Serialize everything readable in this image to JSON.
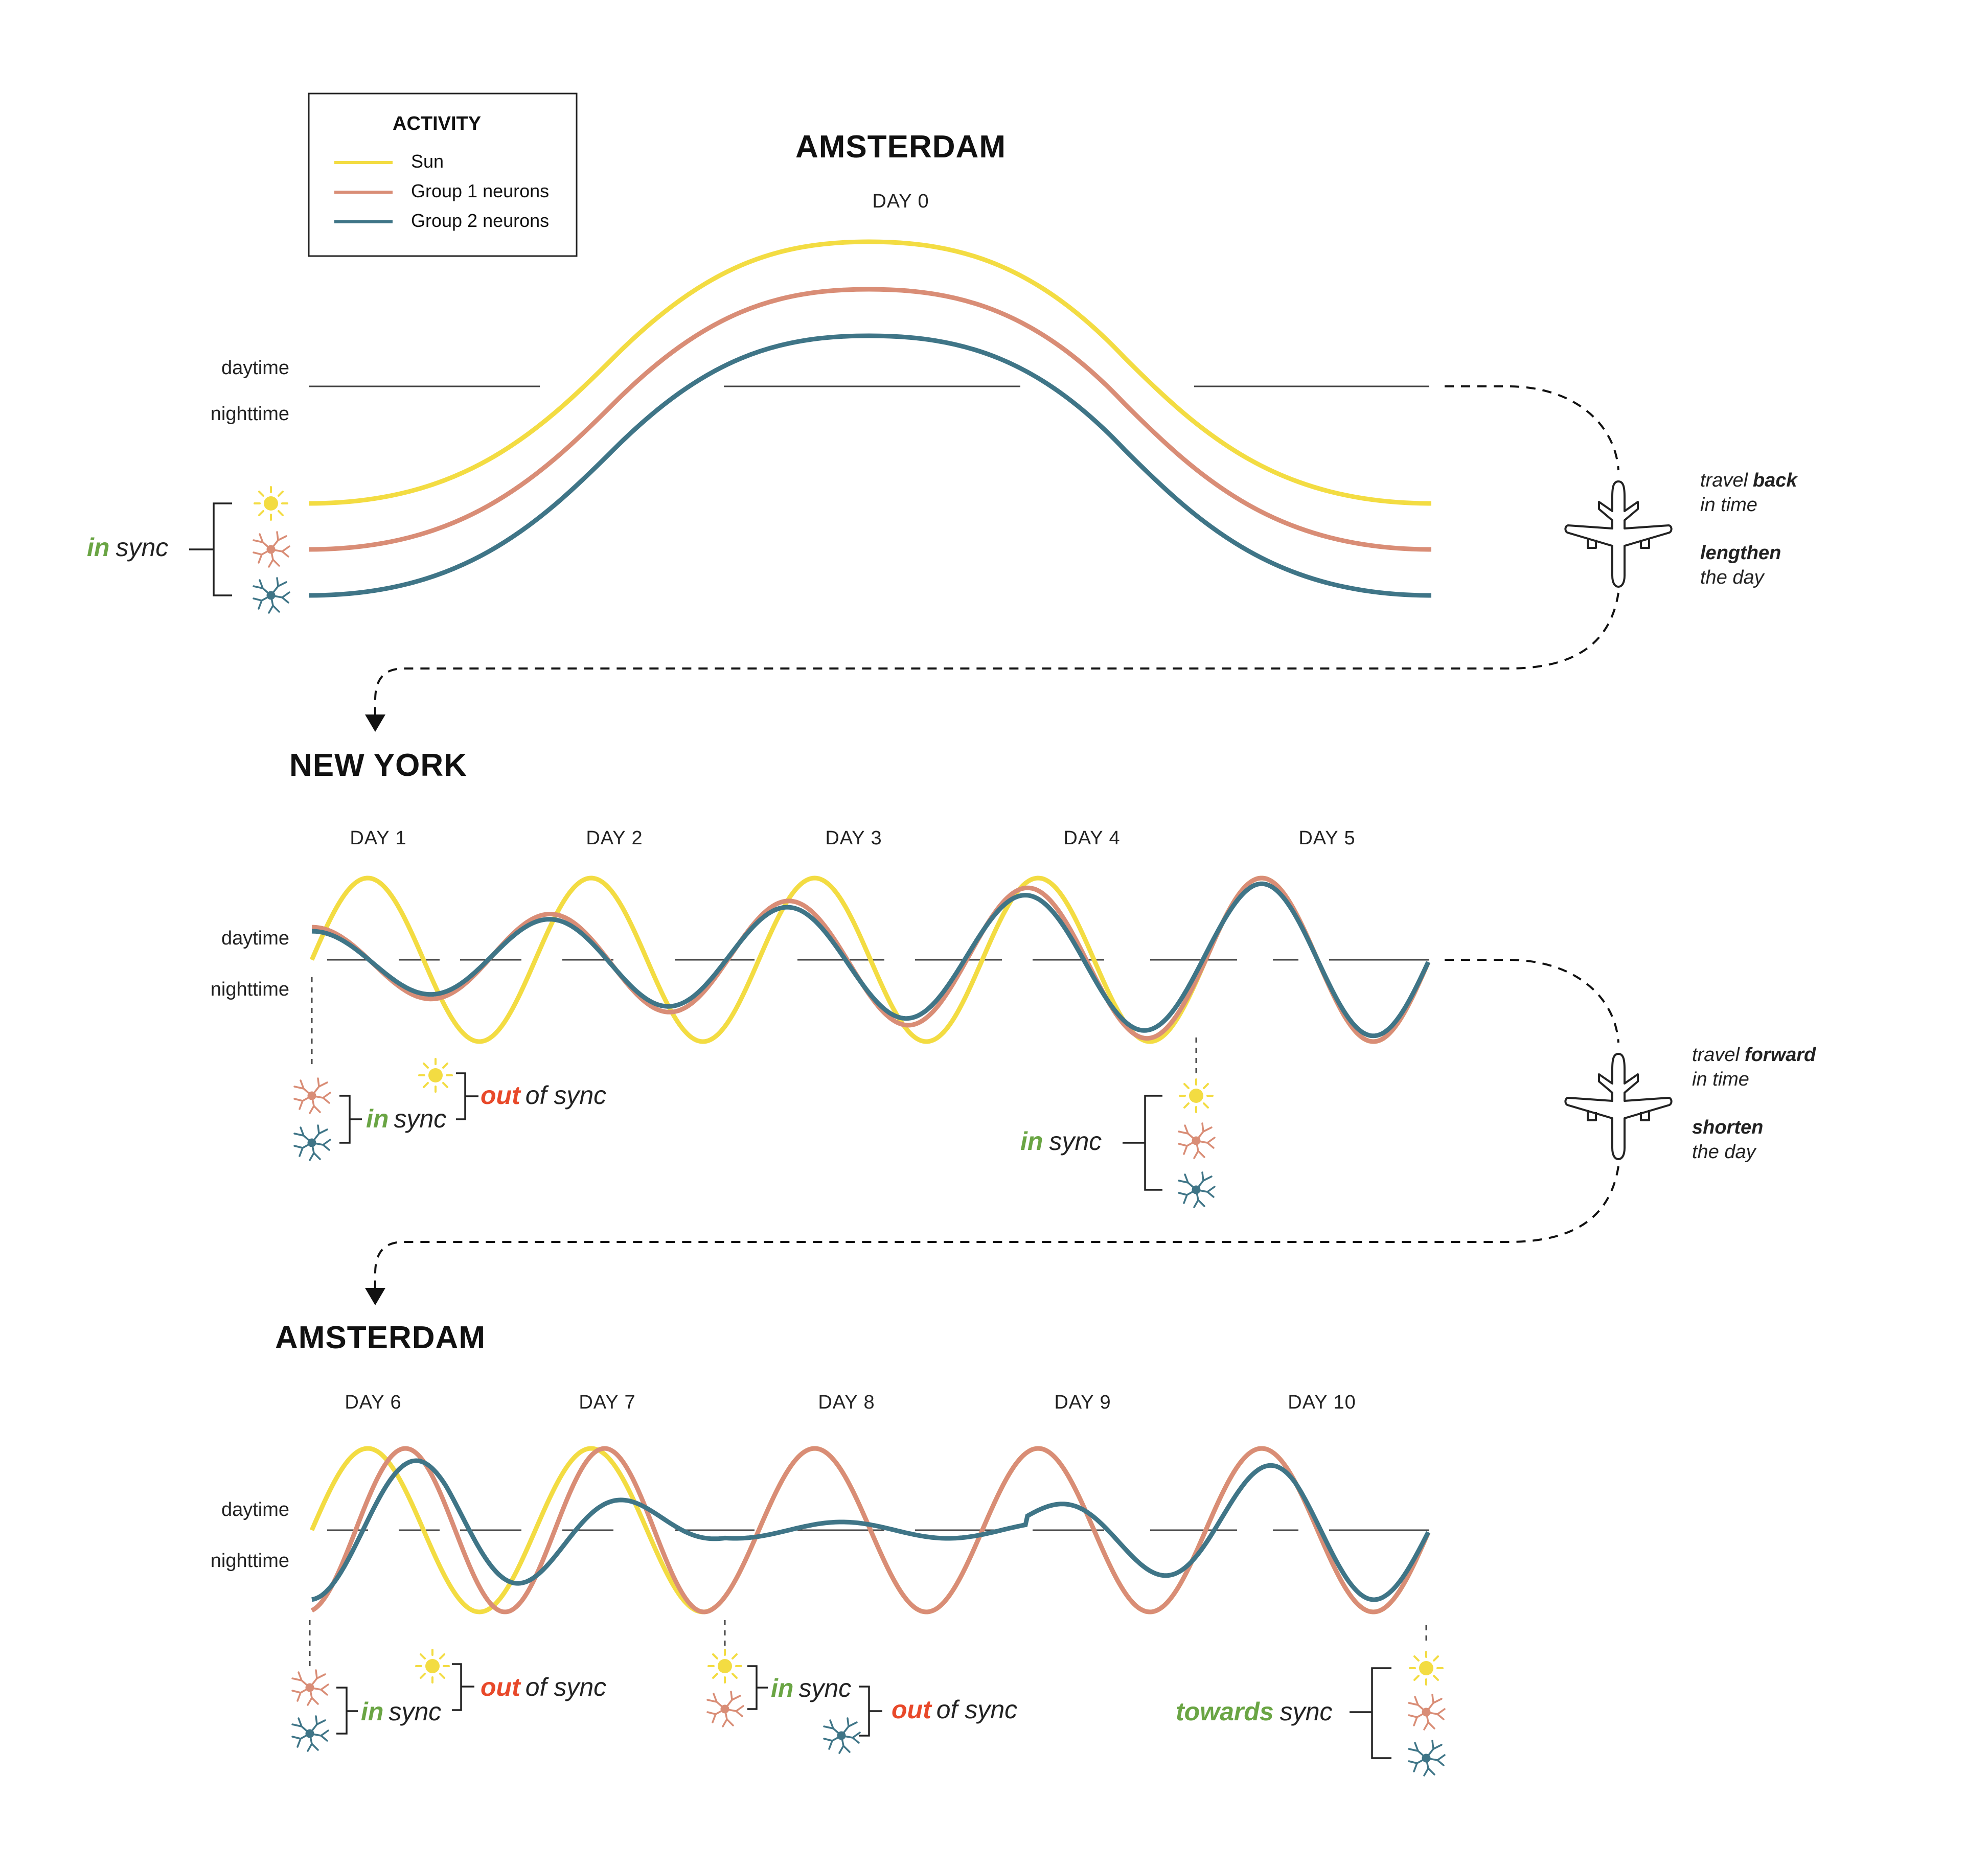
{
  "legend": {
    "title": "ACTIVITY",
    "items": [
      {
        "label": "Sun",
        "color": "#f3dc42"
      },
      {
        "label": "Group 1 neurons",
        "color": "#d98d76"
      },
      {
        "label": "Group 2 neurons",
        "color": "#3f7587"
      }
    ]
  },
  "axis": {
    "daytime": "daytime",
    "nighttime": "nighttime"
  },
  "panels": [
    {
      "city": "AMSTERDAM",
      "days": [
        "DAY 0"
      ]
    },
    {
      "city": "NEW YORK",
      "days": [
        "DAY 1",
        "DAY 2",
        "DAY 3",
        "DAY 4",
        "DAY 5"
      ]
    },
    {
      "city": "AMSTERDAM",
      "days": [
        "DAY 6",
        "DAY 7",
        "DAY 8",
        "DAY 9",
        "DAY 10"
      ]
    }
  ],
  "sync_words": {
    "in": "in",
    "out": "out",
    "towards": "towards",
    "sync": "sync",
    "of_sync": "of sync"
  },
  "travel": [
    {
      "pre": "travel",
      "key": "back",
      "line2": "in time",
      "key2": "lengthen",
      "line4": "the day"
    },
    {
      "pre": "travel",
      "key": "forward",
      "line2": "in time",
      "key2": "shorten",
      "line4": "the day"
    }
  ],
  "icons": [
    "sun-icon",
    "neuron-icon",
    "airplane-icon",
    "arrow-down-icon"
  ],
  "colors": {
    "sun": "#f3dc42",
    "group1": "#d98d76",
    "group2": "#3f7587",
    "in_sync": "#6aa544",
    "out_of_sync": "#e8492a"
  }
}
